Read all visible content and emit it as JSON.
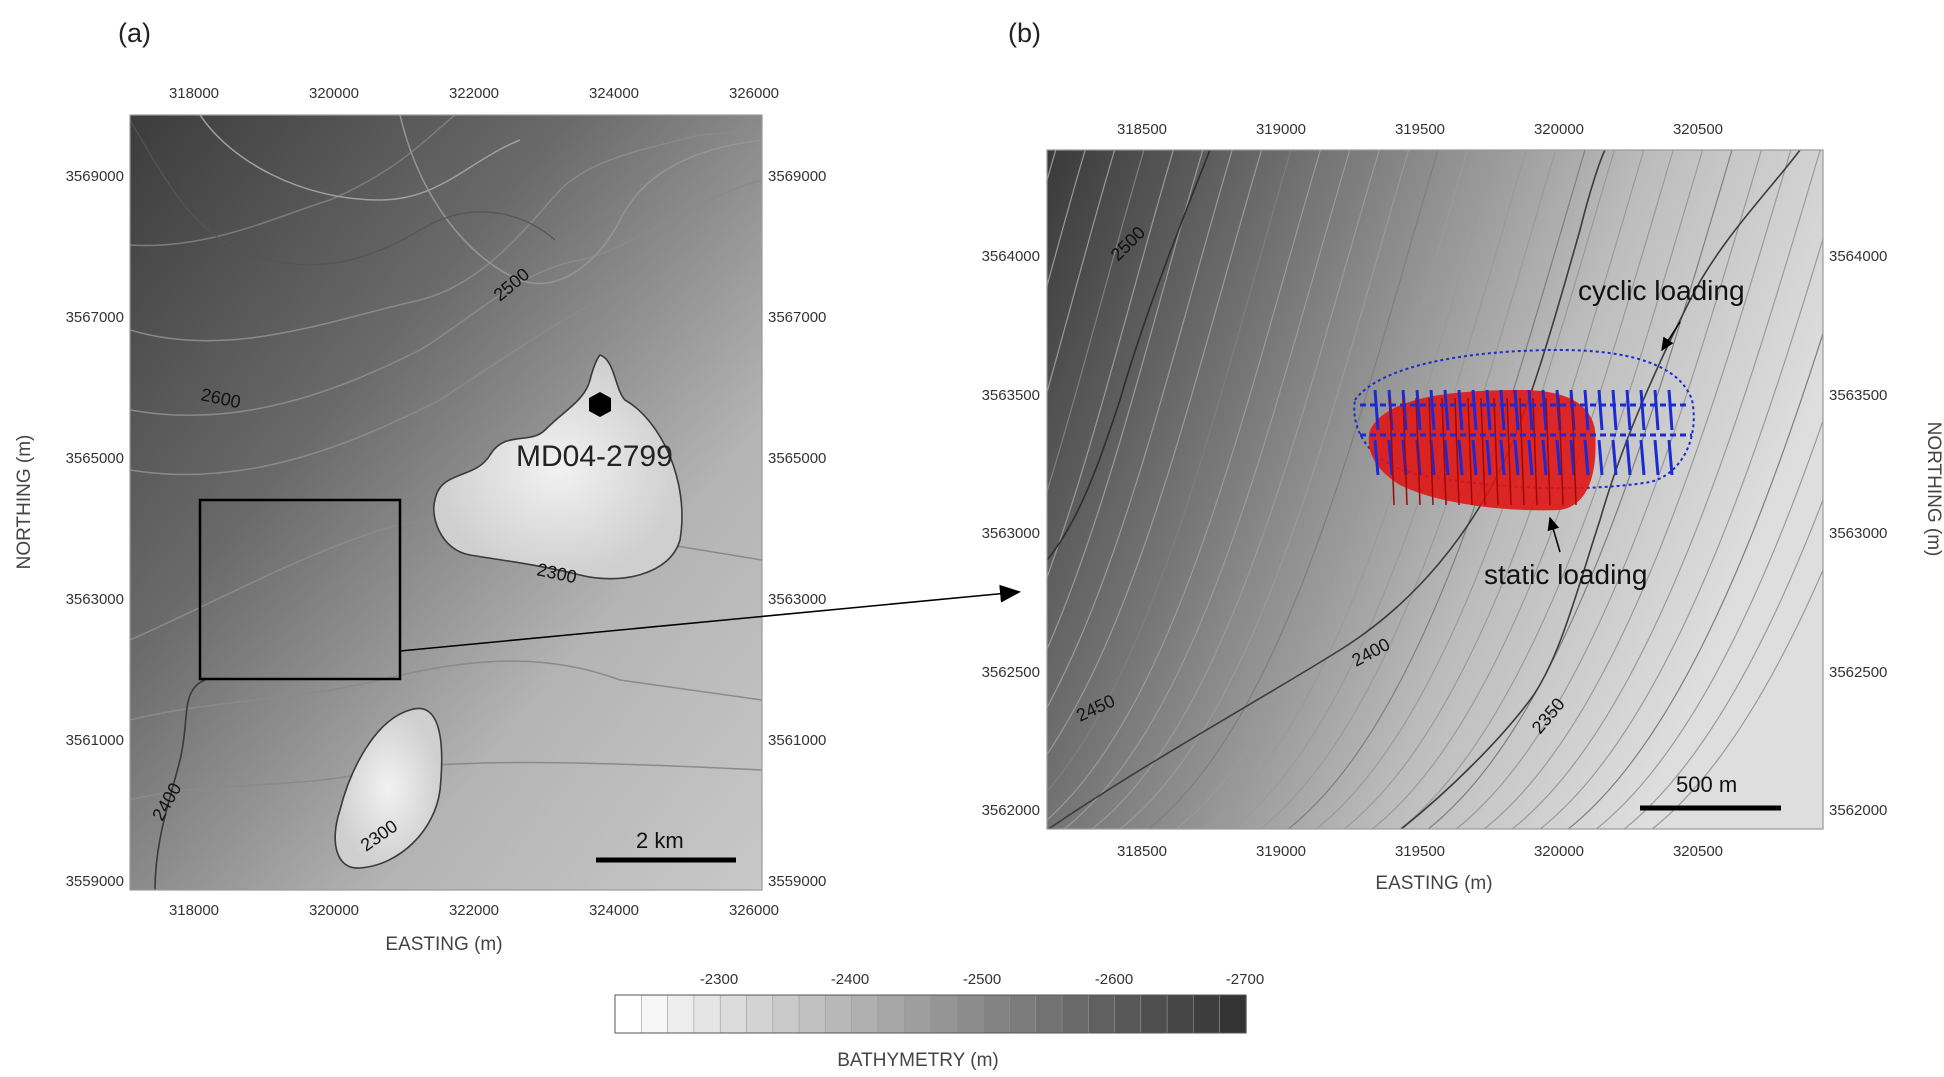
{
  "panels": {
    "a": {
      "label": "(a)",
      "easting_ticks": [
        "318000",
        "320000",
        "322000",
        "324000",
        "326000"
      ],
      "northing_ticks": [
        "3569000",
        "3567000",
        "3565000",
        "3563000",
        "3561000",
        "3559000"
      ],
      "xlabel": "EASTING (m)",
      "ylabel": "NORTHING (m)",
      "contours": [
        "2500",
        "2600",
        "2300",
        "2400",
        "2300"
      ],
      "site_label": "MD04-2799",
      "scale_label": "2 km"
    },
    "b": {
      "label": "(b)",
      "easting_ticks": [
        "318500",
        "319000",
        "319500",
        "320000",
        "320500"
      ],
      "northing_ticks": [
        "3564000",
        "3563500",
        "3563000",
        "3562500",
        "3562000"
      ],
      "xlabel": "EASTING (m)",
      "ylabel": "NORTHING (m)",
      "contours": [
        "2500",
        "2400",
        "2450",
        "2350"
      ],
      "annotation_cyclic": "cyclic loading",
      "annotation_static": "static loading",
      "scale_label": "500 m",
      "colors": {
        "cyclic": "#1a2bd6",
        "static": "#e01515"
      }
    }
  },
  "colorbar": {
    "ticks": [
      "-2300",
      "-2400",
      "-2500",
      "-2600",
      "-2700"
    ],
    "label": "BATHYMETRY (m)"
  }
}
